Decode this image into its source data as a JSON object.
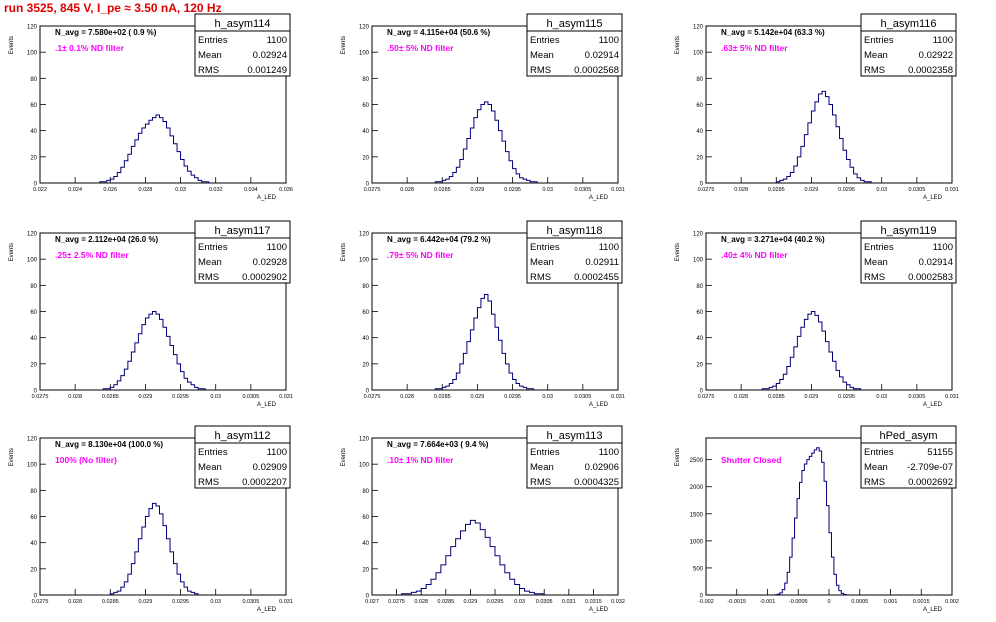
{
  "page": {
    "title": "run 3525,   845 V, I_pe ≈ 3.50 nA, 120 Hz"
  },
  "colors": {
    "title": "#e00000",
    "histogram": "#00007a",
    "annotation": "#ff00ff",
    "frame": "#000000"
  },
  "chart_data": [
    {
      "type": "bar",
      "style": "step-histogram",
      "name": "h_asym114",
      "y_axis_label": "Events",
      "x_axis_label": "A_LED",
      "xlim": [
        0.022,
        0.036
      ],
      "ylim": [
        0,
        120
      ],
      "x_ticks": [
        0.022,
        0.024,
        0.026,
        0.028,
        0.03,
        0.032,
        0.034,
        0.036
      ],
      "x_tick_labels": [
        "0.022",
        "0.024",
        "0.026",
        "0.028",
        "0.03",
        "0.032",
        "0.034",
        "0.036"
      ],
      "y_ticks": [
        0,
        20,
        40,
        60,
        80,
        100,
        120
      ],
      "stats": {
        "label": "h_asym114",
        "rows": [
          [
            "Entries",
            "1100"
          ],
          [
            "Mean",
            "0.02924"
          ],
          [
            "RMS",
            "0.001249"
          ]
        ]
      },
      "navg": "N_avg = 7.580e+02 ( 0.9 %)",
      "filter": ".1± 0.1% ND filter",
      "bin_width": 0.0002,
      "bin_start": 0.0254,
      "counts": [
        1,
        1,
        2,
        3,
        5,
        8,
        12,
        17,
        22,
        28,
        33,
        38,
        42,
        45,
        48,
        50,
        52,
        50,
        47,
        42,
        36,
        30,
        24,
        18,
        13,
        9,
        6,
        4,
        2,
        1,
        1
      ]
    },
    {
      "type": "bar",
      "style": "step-histogram",
      "name": "h_asym115",
      "y_axis_label": "Events",
      "x_axis_label": "A_LED",
      "xlim": [
        0.0275,
        0.031
      ],
      "ylim": [
        0,
        120
      ],
      "x_ticks": [
        0.0275,
        0.028,
        0.0285,
        0.029,
        0.0295,
        0.03,
        0.0305,
        0.031
      ],
      "x_tick_labels": [
        "0.0275",
        "0.028",
        "0.0285",
        "0.029",
        "0.0295",
        "0.03",
        "0.0305",
        "0.031"
      ],
      "y_ticks": [
        0,
        20,
        40,
        60,
        80,
        100,
        120
      ],
      "stats": {
        "label": "h_asym115",
        "rows": [
          [
            "Entries",
            "1100"
          ],
          [
            "Mean",
            "0.02914"
          ],
          [
            "RMS",
            "0.0002568"
          ]
        ]
      },
      "navg": "N_avg = 4.115e+04 (50.6 %)",
      "filter": ".50± 5% ND filter",
      "bin_width": 5e-05,
      "bin_start": 0.0284,
      "counts": [
        1,
        1,
        2,
        3,
        5,
        8,
        12,
        18,
        26,
        34,
        42,
        50,
        56,
        60,
        62,
        60,
        55,
        48,
        40,
        32,
        24,
        17,
        11,
        7,
        4,
        3,
        2,
        1,
        1
      ]
    },
    {
      "type": "bar",
      "style": "step-histogram",
      "name": "h_asym116",
      "y_axis_label": "Events",
      "x_axis_label": "A_LED",
      "xlim": [
        0.0275,
        0.031
      ],
      "ylim": [
        0,
        120
      ],
      "x_ticks": [
        0.0275,
        0.028,
        0.0285,
        0.029,
        0.0295,
        0.03,
        0.0305,
        0.031
      ],
      "x_tick_labels": [
        "0.0275",
        "0.028",
        "0.0285",
        "0.029",
        "0.0295",
        "0.03",
        "0.0305",
        "0.031"
      ],
      "y_ticks": [
        0,
        20,
        40,
        60,
        80,
        100,
        120
      ],
      "stats": {
        "label": "h_asym116",
        "rows": [
          [
            "Entries",
            "1100"
          ],
          [
            "Mean",
            "0.02922"
          ],
          [
            "RMS",
            "0.0002358"
          ]
        ]
      },
      "navg": "N_avg = 5.142e+04 (63.3 %)",
      "filter": ".63± 5% ND filter",
      "bin_width": 5e-05,
      "bin_start": 0.0285,
      "counts": [
        1,
        2,
        3,
        5,
        8,
        13,
        20,
        28,
        37,
        46,
        55,
        62,
        68,
        70,
        66,
        60,
        52,
        43,
        34,
        25,
        18,
        12,
        7,
        4,
        2,
        1,
        1
      ]
    },
    {
      "type": "bar",
      "style": "step-histogram",
      "name": "h_asym117",
      "y_axis_label": "Events",
      "x_axis_label": "A_LED",
      "xlim": [
        0.0275,
        0.031
      ],
      "ylim": [
        0,
        120
      ],
      "x_ticks": [
        0.0275,
        0.028,
        0.0285,
        0.029,
        0.0295,
        0.03,
        0.0305,
        0.031
      ],
      "x_tick_labels": [
        "0.0275",
        "0.028",
        "0.0285",
        "0.029",
        "0.0295",
        "0.03",
        "0.0305",
        "0.031"
      ],
      "y_ticks": [
        0,
        20,
        40,
        60,
        80,
        100,
        120
      ],
      "stats": {
        "label": "h_asym117",
        "rows": [
          [
            "Entries",
            "1100"
          ],
          [
            "Mean",
            "0.02928"
          ],
          [
            "RMS",
            "0.0002902"
          ]
        ]
      },
      "navg": "N_avg = 2.112e+04 (26.0 %)",
      "filter": ".25± 2.5% ND filter",
      "bin_width": 5e-05,
      "bin_start": 0.0284,
      "counts": [
        1,
        1,
        2,
        4,
        7,
        11,
        16,
        22,
        29,
        36,
        43,
        50,
        55,
        58,
        60,
        58,
        54,
        48,
        41,
        34,
        27,
        20,
        14,
        9,
        6,
        4,
        2,
        1,
        1
      ]
    },
    {
      "type": "bar",
      "style": "step-histogram",
      "name": "h_asym118",
      "y_axis_label": "Events",
      "x_axis_label": "A_LED",
      "xlim": [
        0.0275,
        0.031
      ],
      "ylim": [
        0,
        120
      ],
      "x_ticks": [
        0.0275,
        0.028,
        0.0285,
        0.029,
        0.0295,
        0.03,
        0.0305,
        0.031
      ],
      "x_tick_labels": [
        "0.0275",
        "0.028",
        "0.0285",
        "0.029",
        "0.0295",
        "0.03",
        "0.0305",
        "0.031"
      ],
      "y_ticks": [
        0,
        20,
        40,
        60,
        80,
        100,
        120
      ],
      "stats": {
        "label": "h_asym118",
        "rows": [
          [
            "Entries",
            "1100"
          ],
          [
            "Mean",
            "0.02911"
          ],
          [
            "RMS",
            "0.0002455"
          ]
        ]
      },
      "navg": "N_avg = 6.442e+04 (79.2 %)",
      "filter": ".79± 5% ND filter",
      "bin_width": 5e-05,
      "bin_start": 0.0284,
      "counts": [
        1,
        1,
        2,
        3,
        5,
        8,
        13,
        20,
        28,
        37,
        46,
        55,
        63,
        70,
        73,
        68,
        58,
        48,
        38,
        28,
        20,
        13,
        8,
        5,
        3,
        2,
        1,
        1
      ]
    },
    {
      "type": "bar",
      "style": "step-histogram",
      "name": "h_asym119",
      "y_axis_label": "Events",
      "x_axis_label": "A_LED",
      "xlim": [
        0.0275,
        0.031
      ],
      "ylim": [
        0,
        120
      ],
      "x_ticks": [
        0.0275,
        0.028,
        0.0285,
        0.029,
        0.0295,
        0.03,
        0.0305,
        0.031
      ],
      "x_tick_labels": [
        "0.0275",
        "0.028",
        "0.0285",
        "0.029",
        "0.0295",
        "0.03",
        "0.0305",
        "0.031"
      ],
      "y_ticks": [
        0,
        20,
        40,
        60,
        80,
        100,
        120
      ],
      "stats": {
        "label": "h_asym119",
        "rows": [
          [
            "Entries",
            "1100"
          ],
          [
            "Mean",
            "0.02914"
          ],
          [
            "RMS",
            "0.0002583"
          ]
        ]
      },
      "navg": "N_avg = 3.271e+04 (40.2 %)",
      "filter": ".40± 4% ND filter",
      "bin_width": 5e-05,
      "bin_start": 0.0283,
      "counts": [
        1,
        1,
        2,
        3,
        5,
        8,
        12,
        18,
        25,
        33,
        41,
        48,
        54,
        58,
        60,
        57,
        52,
        45,
        37,
        29,
        22,
        15,
        10,
        6,
        4,
        2,
        1,
        1
      ]
    },
    {
      "type": "bar",
      "style": "step-histogram",
      "name": "h_asym112",
      "y_axis_label": "Events",
      "x_axis_label": "A_LED",
      "xlim": [
        0.0275,
        0.031
      ],
      "ylim": [
        0,
        120
      ],
      "x_ticks": [
        0.0275,
        0.028,
        0.0285,
        0.029,
        0.0295,
        0.03,
        0.0305,
        0.031
      ],
      "x_tick_labels": [
        "0.0275",
        "0.028",
        "0.0285",
        "0.029",
        "0.0295",
        "0.03",
        "0.0305",
        "0.031"
      ],
      "y_ticks": [
        0,
        20,
        40,
        60,
        80,
        100,
        120
      ],
      "stats": {
        "label": "h_asym112",
        "rows": [
          [
            "Entries",
            "1100"
          ],
          [
            "Mean",
            "0.02909"
          ],
          [
            "RMS",
            "0.0002207"
          ]
        ]
      },
      "navg": "N_avg = 8.130e+04 (100.0 %)",
      "filter": "100% (No filter)",
      "bin_width": 5e-05,
      "bin_start": 0.0285,
      "counts": [
        1,
        2,
        3,
        6,
        10,
        16,
        24,
        33,
        43,
        52,
        60,
        66,
        70,
        68,
        62,
        53,
        43,
        33,
        24,
        16,
        10,
        6,
        3,
        2,
        1
      ]
    },
    {
      "type": "bar",
      "style": "step-histogram",
      "name": "h_asym113",
      "y_axis_label": "Events",
      "x_axis_label": "A_LED",
      "xlim": [
        0.027,
        0.032
      ],
      "ylim": [
        0,
        120
      ],
      "x_ticks": [
        0.027,
        0.0275,
        0.028,
        0.0285,
        0.029,
        0.0295,
        0.03,
        0.0305,
        0.031,
        0.0315,
        0.032
      ],
      "x_tick_labels": [
        "0.027",
        "0.0275",
        "0.028",
        "0.0285",
        "0.029",
        "0.0295",
        "0.03",
        "0.0305",
        "0.031",
        "0.0315",
        "0.032"
      ],
      "y_ticks": [
        0,
        20,
        40,
        60,
        80,
        100,
        120
      ],
      "stats": {
        "label": "h_asym113",
        "rows": [
          [
            "Entries",
            "1100"
          ],
          [
            "Mean",
            "0.02906"
          ],
          [
            "RMS",
            "0.0004325"
          ]
        ]
      },
      "navg": "N_avg = 7.664e+03 ( 9.4 %)",
      "filter": ".10± 1% ND filter",
      "bin_width": 0.0001,
      "bin_start": 0.0276,
      "counts": [
        1,
        1,
        2,
        3,
        5,
        8,
        12,
        17,
        23,
        30,
        37,
        43,
        49,
        54,
        57,
        55,
        50,
        44,
        37,
        30,
        23,
        17,
        12,
        8,
        5,
        3,
        2,
        1,
        1
      ]
    },
    {
      "type": "bar",
      "style": "step-histogram",
      "name": "hPed_asym",
      "y_axis_label": "Events",
      "x_axis_label": "A_LED",
      "xlim": [
        -0.002,
        0.002
      ],
      "ylim": [
        0,
        2900
      ],
      "x_ticks": [
        -0.002,
        -0.0015,
        -0.001,
        -0.0005,
        0,
        0.0005,
        0.001,
        0.0015,
        0.002
      ],
      "x_tick_labels": [
        "-0.002",
        "-0.0015",
        "-0.001",
        "-0.0005",
        "0",
        "0.0005",
        "0.001",
        "0.0015",
        "0.002"
      ],
      "y_ticks": [
        0,
        500,
        1000,
        1500,
        2000,
        2500
      ],
      "stats": {
        "label": "hPed_asym",
        "rows": [
          [
            "Entries",
            "51155"
          ],
          [
            "Mean",
            "-2.709e-07"
          ],
          [
            "RMS",
            "0.0002692"
          ]
        ]
      },
      "navg": "",
      "filter": "Shutter Closed",
      "bin_width": 4e-05,
      "bin_start": -0.00088,
      "counts": [
        5,
        15,
        40,
        100,
        220,
        420,
        700,
        1050,
        1420,
        1780,
        2080,
        2300,
        2420,
        2500,
        2560,
        2620,
        2680,
        2720,
        2660,
        2450,
        2100,
        1650,
        1150,
        700,
        380,
        180,
        80,
        30,
        10,
        3
      ]
    }
  ]
}
